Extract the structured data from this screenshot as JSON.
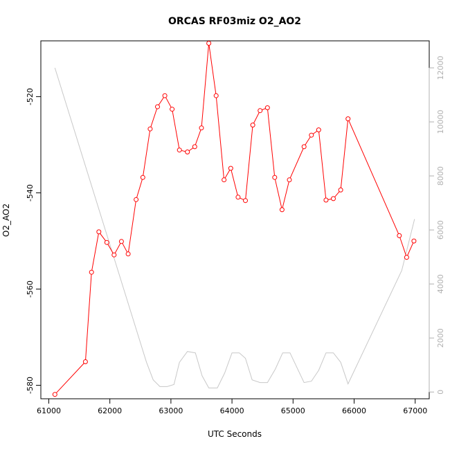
{
  "chart_data": {
    "type": "line",
    "title": "ORCAS RF03miz O2_AO2",
    "xlabel": "UTC Seconds",
    "ylabel": "O2_AO2",
    "xlim": [
      60870,
      67230
    ],
    "ylim": [
      -582.8,
      -508.4
    ],
    "y2lim": [
      -250,
      13000
    ],
    "x_ticks": [
      61000,
      62000,
      63000,
      64000,
      65000,
      66000,
      67000
    ],
    "y_ticks": [
      -580,
      -560,
      -540,
      -520
    ],
    "y2_ticks": [
      0,
      2000,
      4000,
      6000,
      8000,
      10000,
      12000
    ],
    "series": [
      {
        "color": "#ff0000",
        "axis": "left",
        "markers": true,
        "x": [
          61100,
          61600,
          61700,
          61820,
          61950,
          62070,
          62190,
          62300,
          62430,
          62540,
          62660,
          62780,
          62900,
          63020,
          63140,
          63270,
          63390,
          63500,
          63620,
          63740,
          63870,
          63980,
          64100,
          64220,
          64340,
          64460,
          64580,
          64700,
          64820,
          64940,
          65180,
          65300,
          65420,
          65540,
          65660,
          65780,
          65900,
          66740,
          66860,
          66980
        ],
        "y": [
          -581.9,
          -575.1,
          -556.5,
          -548.1,
          -550.3,
          -552.9,
          -550.1,
          -552.7,
          -541.4,
          -536.8,
          -526.7,
          -522.1,
          -519.8,
          -522.6,
          -531.1,
          -531.5,
          -530.4,
          -526.5,
          -508.9,
          -519.8,
          -537.3,
          -534.9,
          -540.9,
          -541.6,
          -525.9,
          -522.9,
          -522.3,
          -536.8,
          -543.5,
          -537.3,
          -530.4,
          -528.0,
          -526.9,
          -541.5,
          -541.2,
          -539.4,
          -524.6,
          -548.9,
          -553.4,
          -550.0
        ]
      },
      {
        "color": "#c8c8c8",
        "axis": "right",
        "markers": false,
        "x": [
          61100,
          62600,
          62710,
          62820,
          62940,
          63050,
          63140,
          63270,
          63400,
          63510,
          63620,
          63760,
          63880,
          64000,
          64120,
          64220,
          64330,
          64460,
          64580,
          64710,
          64830,
          64950,
          65180,
          65300,
          65420,
          65540,
          65660,
          65780,
          65900,
          66780,
          66990
        ],
        "y": [
          12000,
          1100,
          450,
          200,
          200,
          280,
          1100,
          1500,
          1450,
          600,
          150,
          150,
          700,
          1450,
          1450,
          1250,
          450,
          350,
          350,
          850,
          1450,
          1450,
          350,
          400,
          800,
          1450,
          1450,
          1100,
          300,
          4500,
          6400
        ]
      }
    ]
  }
}
